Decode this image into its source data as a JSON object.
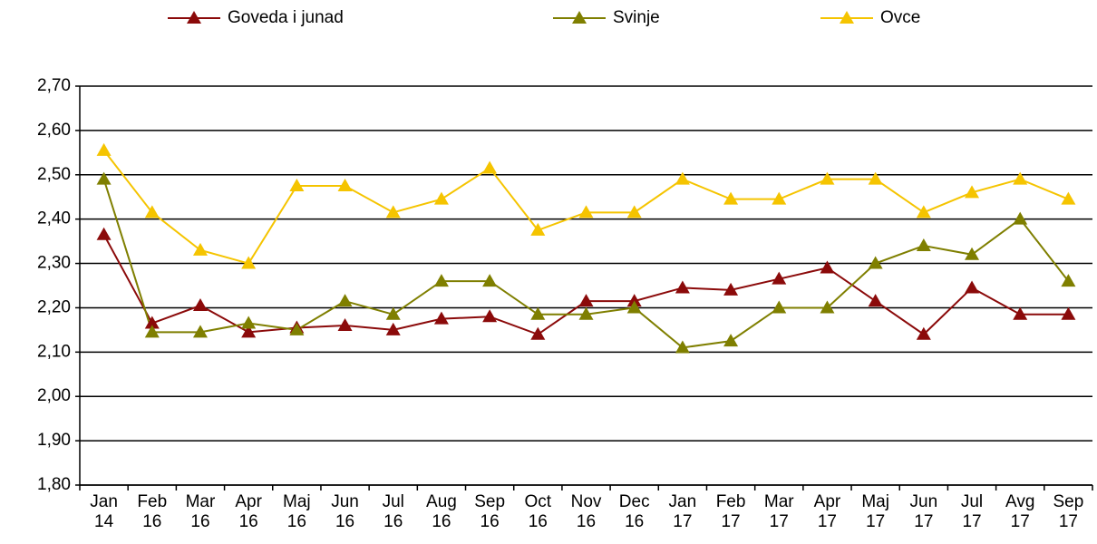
{
  "chart_data": {
    "type": "line",
    "categories": [
      "Jan 14",
      "Feb 16",
      "Mar 16",
      "Apr 16",
      "Maj 16",
      "Jun 16",
      "Jul 16",
      "Aug 16",
      "Sep 16",
      "Oct 16",
      "Nov 16",
      "Dec 16",
      "Jan 17",
      "Feb 17",
      "Mar 17",
      "Apr 17",
      "Maj 17",
      "Jun 17",
      "Jul 17",
      "Avg 17",
      "Sep 17"
    ],
    "series": [
      {
        "name": "Goveda i junad",
        "color": "#8b0a0a",
        "values": [
          2.365,
          2.165,
          2.205,
          2.145,
          2.155,
          2.16,
          2.15,
          2.175,
          2.18,
          2.14,
          2.215,
          2.215,
          2.245,
          2.24,
          2.265,
          2.29,
          2.215,
          2.14,
          2.245,
          2.185,
          2.185
        ]
      },
      {
        "name": "Svinje",
        "color": "#7f7f00",
        "values": [
          2.49,
          2.145,
          2.145,
          2.165,
          2.15,
          2.215,
          2.185,
          2.26,
          2.26,
          2.185,
          2.185,
          2.2,
          2.11,
          2.125,
          2.2,
          2.2,
          2.3,
          2.34,
          2.32,
          2.4,
          2.26
        ]
      },
      {
        "name": "Ovce",
        "color": "#f5c400",
        "values": [
          2.555,
          2.415,
          2.33,
          2.3,
          2.475,
          2.475,
          2.415,
          2.445,
          2.515,
          2.375,
          2.415,
          2.415,
          2.49,
          2.445,
          2.445,
          2.49,
          2.49,
          2.415,
          2.46,
          2.49,
          2.445
        ]
      }
    ],
    "ylim": [
      1.8,
      2.7
    ],
    "yticks": [
      {
        "value": 1.8,
        "label": "1,80"
      },
      {
        "value": 1.9,
        "label": "1,90"
      },
      {
        "value": 2.0,
        "label": "2,00"
      },
      {
        "value": 2.1,
        "label": "2,10"
      },
      {
        "value": 2.2,
        "label": "2,20"
      },
      {
        "value": 2.3,
        "label": "2,30"
      },
      {
        "value": 2.4,
        "label": "2,40"
      },
      {
        "value": 2.5,
        "label": "2,50"
      },
      {
        "value": 2.6,
        "label": "2,60"
      },
      {
        "value": 2.7,
        "label": "2,70"
      }
    ],
    "grid": true,
    "legend": "top"
  }
}
